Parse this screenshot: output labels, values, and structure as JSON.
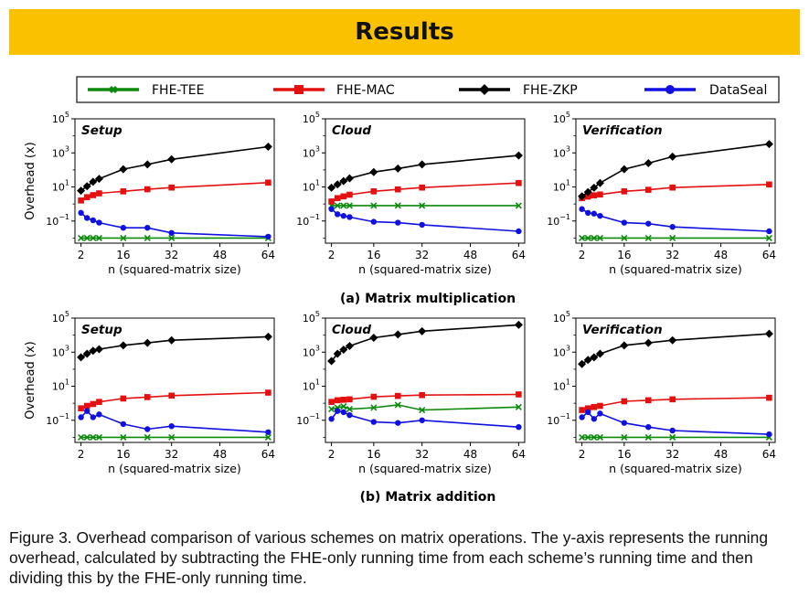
{
  "banner": {
    "title": "Results"
  },
  "legend": [
    {
      "name": "FHE-TEE",
      "color": "#0a8a0a",
      "marker": "x"
    },
    {
      "name": "FHE-MAC",
      "color": "#e41010",
      "marker": "s"
    },
    {
      "name": "FHE-ZKP",
      "color": "#000000",
      "marker": "D"
    },
    {
      "name": "DataSeal",
      "color": "#1010e0",
      "marker": "o"
    }
  ],
  "axes": {
    "ylabel": "Overhead (x)",
    "xlabel": "n (squared-matrix size)",
    "xticks": [
      2,
      16,
      32,
      48,
      64
    ],
    "yticks": [
      {
        "base": "10",
        "exp": "5"
      },
      {
        "base": "10",
        "exp": "3"
      },
      {
        "base": "10",
        "exp": "1"
      },
      {
        "base": "10",
        "exp": "−1"
      }
    ]
  },
  "subcaptions": [
    "(a) Matrix multiplication",
    "(b) Matrix addition"
  ],
  "caption": "Figure 3. Overhead comparison of various schemes on matrix operations. The y-axis represents the running overhead, calculated by subtracting the FHE-only running time from each scheme’s running time and then dividing this by the FHE-only running time.",
  "chart_data": [
    {
      "type": "line",
      "title": "Setup",
      "group": "(a) Matrix multiplication",
      "xlabel": "n (squared-matrix size)",
      "ylabel": "Overhead (x)",
      "yscale": "log",
      "xlim": [
        0,
        66
      ],
      "ylim": [
        0.005,
        100000
      ],
      "x": [
        2,
        4,
        6,
        8,
        16,
        24,
        32,
        64
      ],
      "series": [
        {
          "name": "FHE-TEE",
          "values": [
            0.01,
            0.01,
            0.01,
            0.01,
            0.01,
            0.01,
            0.01,
            0.01
          ]
        },
        {
          "name": "FHE-MAC",
          "values": [
            1.6,
            2.5,
            3.3,
            4.2,
            5.5,
            7.3,
            9.2,
            18
          ]
        },
        {
          "name": "FHE-ZKP",
          "values": [
            6,
            11,
            20,
            30,
            110,
            210,
            420,
            2300
          ]
        },
        {
          "name": "DataSeal",
          "values": [
            0.3,
            0.15,
            0.11,
            0.08,
            0.04,
            0.04,
            0.02,
            0.012
          ]
        }
      ]
    },
    {
      "type": "line",
      "title": "Cloud",
      "group": "(a) Matrix multiplication",
      "xlabel": "n (squared-matrix size)",
      "ylabel": "",
      "yscale": "log",
      "xlim": [
        0,
        66
      ],
      "ylim": [
        0.005,
        100000
      ],
      "x": [
        2,
        4,
        6,
        8,
        16,
        24,
        32,
        64
      ],
      "series": [
        {
          "name": "FHE-TEE",
          "values": [
            0.8,
            0.8,
            0.8,
            0.8,
            0.8,
            0.8,
            0.8,
            0.8
          ]
        },
        {
          "name": "FHE-MAC",
          "values": [
            1.4,
            2.2,
            2.8,
            3.5,
            5.5,
            7.2,
            9.2,
            17
          ]
        },
        {
          "name": "FHE-ZKP",
          "values": [
            9,
            14,
            22,
            32,
            75,
            120,
            210,
            700
          ]
        },
        {
          "name": "DataSeal",
          "values": [
            0.5,
            0.25,
            0.2,
            0.17,
            0.09,
            0.08,
            0.06,
            0.025
          ]
        }
      ]
    },
    {
      "type": "line",
      "title": "Verification",
      "group": "(a) Matrix multiplication",
      "xlabel": "n (squared-matrix size)",
      "ylabel": "",
      "yscale": "log",
      "xlim": [
        0,
        66
      ],
      "ylim": [
        0.005,
        100000
      ],
      "x": [
        2,
        4,
        6,
        8,
        16,
        24,
        32,
        64
      ],
      "series": [
        {
          "name": "FHE-TEE",
          "values": [
            0.01,
            0.01,
            0.01,
            0.01,
            0.01,
            0.01,
            0.01,
            0.01
          ]
        },
        {
          "name": "FHE-MAC",
          "values": [
            2.2,
            2.7,
            3.2,
            3.6,
            5.5,
            6.8,
            9.2,
            14
          ]
        },
        {
          "name": "FHE-ZKP",
          "values": [
            2.8,
            5,
            9,
            17,
            110,
            250,
            600,
            3300
          ]
        },
        {
          "name": "DataSeal",
          "values": [
            0.5,
            0.3,
            0.27,
            0.2,
            0.08,
            0.07,
            0.045,
            0.025
          ]
        }
      ]
    },
    {
      "type": "line",
      "title": "Setup",
      "group": "(b) Matrix addition",
      "xlabel": "n (squared-matrix size)",
      "ylabel": "Overhead (x)",
      "yscale": "log",
      "xlim": [
        0,
        66
      ],
      "ylim": [
        0.005,
        100000
      ],
      "x": [
        2,
        4,
        6,
        8,
        16,
        24,
        32,
        64
      ],
      "series": [
        {
          "name": "FHE-TEE",
          "values": [
            0.01,
            0.01,
            0.01,
            0.01,
            0.01,
            0.01,
            0.01,
            0.01
          ]
        },
        {
          "name": "FHE-MAC",
          "values": [
            0.5,
            0.7,
            0.9,
            1.2,
            1.9,
            2.3,
            2.8,
            4.2
          ]
        },
        {
          "name": "FHE-ZKP",
          "values": [
            500,
            800,
            1200,
            1500,
            2500,
            3500,
            5000,
            8000
          ]
        },
        {
          "name": "DataSeal",
          "values": [
            0.15,
            0.35,
            0.15,
            0.22,
            0.06,
            0.03,
            0.045,
            0.02
          ]
        }
      ]
    },
    {
      "type": "line",
      "title": "Cloud",
      "group": "(b) Matrix addition",
      "xlabel": "n (squared-matrix size)",
      "ylabel": "",
      "yscale": "log",
      "xlim": [
        0,
        66
      ],
      "ylim": [
        0.005,
        100000
      ],
      "x": [
        2,
        4,
        6,
        8,
        16,
        24,
        32,
        64
      ],
      "series": [
        {
          "name": "FHE-TEE",
          "values": [
            0.45,
            0.55,
            0.65,
            0.45,
            0.55,
            0.8,
            0.4,
            0.6
          ]
        },
        {
          "name": "FHE-MAC",
          "values": [
            1.2,
            1.5,
            1.6,
            1.7,
            2.4,
            2.7,
            3.0,
            3.3
          ]
        },
        {
          "name": "FHE-ZKP",
          "values": [
            300,
            800,
            1400,
            2300,
            7000,
            11000,
            17000,
            40000
          ]
        },
        {
          "name": "DataSeal",
          "values": [
            0.12,
            0.35,
            0.3,
            0.2,
            0.08,
            0.07,
            0.1,
            0.04
          ]
        }
      ]
    },
    {
      "type": "line",
      "title": "Verification",
      "group": "(b) Matrix addition",
      "xlabel": "n (squared-matrix size)",
      "ylabel": "",
      "yscale": "log",
      "xlim": [
        0,
        66
      ],
      "ylim": [
        0.005,
        100000
      ],
      "x": [
        2,
        4,
        6,
        8,
        16,
        24,
        32,
        64
      ],
      "series": [
        {
          "name": "FHE-TEE",
          "values": [
            0.01,
            0.01,
            0.01,
            0.01,
            0.01,
            0.01,
            0.01,
            0.01
          ]
        },
        {
          "name": "FHE-MAC",
          "values": [
            0.4,
            0.5,
            0.6,
            0.7,
            1.3,
            1.5,
            1.7,
            2.1
          ]
        },
        {
          "name": "FHE-ZKP",
          "values": [
            200,
            350,
            500,
            800,
            2500,
            3500,
            5000,
            12000
          ]
        },
        {
          "name": "DataSeal",
          "values": [
            0.15,
            0.3,
            0.12,
            0.25,
            0.07,
            0.04,
            0.025,
            0.015
          ]
        }
      ]
    }
  ]
}
